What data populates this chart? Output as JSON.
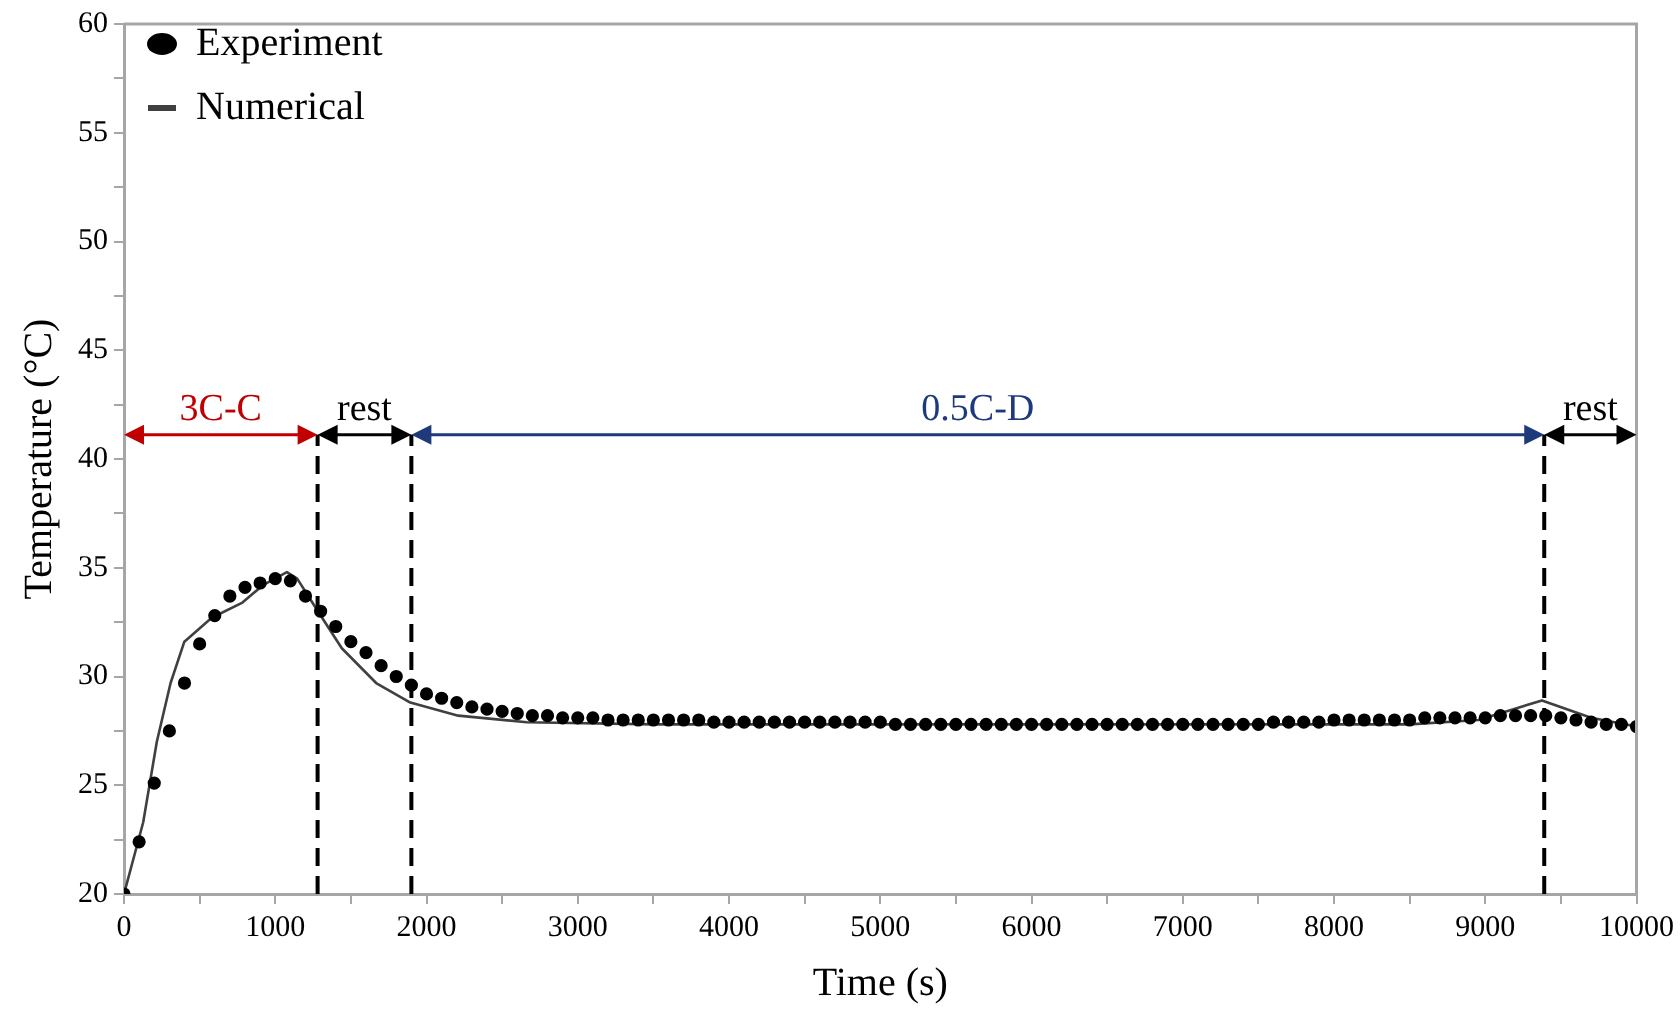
{
  "chart_data": {
    "type": "line",
    "xlabel": "Time (s)",
    "ylabel": "Temperature (°C)",
    "xlim": [
      0,
      10000
    ],
    "ylim": [
      20,
      60
    ],
    "xticks": [
      0,
      {
        "value": 500,
        "label": null
      },
      1000,
      {
        "value": 1500,
        "label": null
      },
      2000,
      {
        "value": 2500,
        "label": null
      },
      3000,
      {
        "value": 3500,
        "label": null
      },
      4000,
      {
        "value": 4500,
        "label": null
      },
      5000,
      {
        "value": 5500,
        "label": null
      },
      6000,
      {
        "value": 6500,
        "label": null
      },
      7000,
      {
        "value": 7500,
        "label": null
      },
      8000,
      {
        "value": 8500,
        "label": null
      },
      9000,
      {
        "value": 9500,
        "label": null
      },
      10000
    ],
    "yticks": [
      20,
      {
        "value": 22.5,
        "label": null
      },
      25,
      {
        "value": 27.5,
        "label": null
      },
      30,
      {
        "value": 32.5,
        "label": null
      },
      35,
      {
        "value": 37.5,
        "label": null
      },
      40,
      {
        "value": 42.5,
        "label": null
      },
      45,
      {
        "value": 47.5,
        "label": null
      },
      50,
      {
        "value": 52.5,
        "label": null
      },
      55,
      {
        "value": 57.5,
        "label": null
      },
      60
    ],
    "grid": false,
    "legend": "top left",
    "series": [
      {
        "name": "Experiment",
        "type": "scatter",
        "color": "#000000",
        "x": [
          0,
          100,
          200,
          300,
          400,
          500,
          600,
          700,
          800,
          900,
          1000,
          1100,
          1200,
          1300,
          1400,
          1500,
          1600,
          1700,
          1800,
          1900,
          2000,
          2100,
          2200,
          2300,
          2400,
          2500,
          2600,
          2700,
          2800,
          2900,
          3000,
          3100,
          3200,
          3300,
          3400,
          3500,
          3600,
          3700,
          3800,
          3900,
          4000,
          4100,
          4200,
          4300,
          4400,
          4500,
          4600,
          4700,
          4800,
          4900,
          5000,
          5100,
          5200,
          5300,
          5400,
          5500,
          5600,
          5700,
          5800,
          5900,
          6000,
          6100,
          6200,
          6300,
          6400,
          6500,
          6600,
          6700,
          6800,
          6900,
          7000,
          7100,
          7200,
          7300,
          7400,
          7500,
          7600,
          7700,
          7800,
          7900,
          8000,
          8100,
          8200,
          8300,
          8400,
          8500,
          8600,
          8700,
          8800,
          8900,
          9000,
          9100,
          9200,
          9300,
          9400,
          9500,
          9600,
          9700,
          9800,
          9900,
          10000
        ],
        "values": [
          20.0,
          22.4,
          25.1,
          27.5,
          29.7,
          31.5,
          32.8,
          33.7,
          34.1,
          34.3,
          34.5,
          34.4,
          33.7,
          33.0,
          32.3,
          31.6,
          31.1,
          30.5,
          30.0,
          29.6,
          29.2,
          29.0,
          28.8,
          28.6,
          28.5,
          28.4,
          28.3,
          28.2,
          28.2,
          28.1,
          28.1,
          28.1,
          28.0,
          28.0,
          28.0,
          28.0,
          28.0,
          28.0,
          28.0,
          27.9,
          27.9,
          27.9,
          27.9,
          27.9,
          27.9,
          27.9,
          27.9,
          27.9,
          27.9,
          27.9,
          27.9,
          27.8,
          27.8,
          27.8,
          27.8,
          27.8,
          27.8,
          27.8,
          27.8,
          27.8,
          27.8,
          27.8,
          27.8,
          27.8,
          27.8,
          27.8,
          27.8,
          27.8,
          27.8,
          27.8,
          27.8,
          27.8,
          27.8,
          27.8,
          27.8,
          27.8,
          27.9,
          27.9,
          27.9,
          27.9,
          28.0,
          28.0,
          28.0,
          28.0,
          28.0,
          28.0,
          28.1,
          28.1,
          28.1,
          28.1,
          28.1,
          28.2,
          28.2,
          28.2,
          28.2,
          28.1,
          28.0,
          27.9,
          27.8,
          27.8,
          27.7
        ]
      },
      {
        "name": "Numerical",
        "type": "line",
        "color": "#404040",
        "line_style": "solid",
        "x": [
          0,
          127,
          217,
          308,
          399,
          580,
          783,
          919,
          1077,
          1145,
          1282,
          1440,
          1667,
          1893,
          2210,
          2663,
          3500,
          5000,
          7000,
          8500,
          8955,
          9375,
          9700,
          10000
        ],
        "values": [
          20,
          23.3,
          27.0,
          29.7,
          31.6,
          32.7,
          33.4,
          34.2,
          34.8,
          34.5,
          33.0,
          31.3,
          29.7,
          28.8,
          28.2,
          27.9,
          27.8,
          27.8,
          27.8,
          27.8,
          28.0,
          28.9,
          28.1,
          27.7
        ]
      }
    ],
    "ref_lines": [
      {
        "axis": "x",
        "value": 1280,
        "label": null,
        "color": "#000000",
        "line_style": "dashed"
      },
      {
        "axis": "x",
        "value": 1900,
        "label": null,
        "color": "#000000",
        "line_style": "dashed"
      },
      {
        "axis": "x",
        "value": 9390,
        "label": null,
        "color": "#000000",
        "line_style": "dashed"
      }
    ],
    "annotations": [
      "3C-C",
      "rest",
      "0.5C-D",
      "rest"
    ]
  }
}
